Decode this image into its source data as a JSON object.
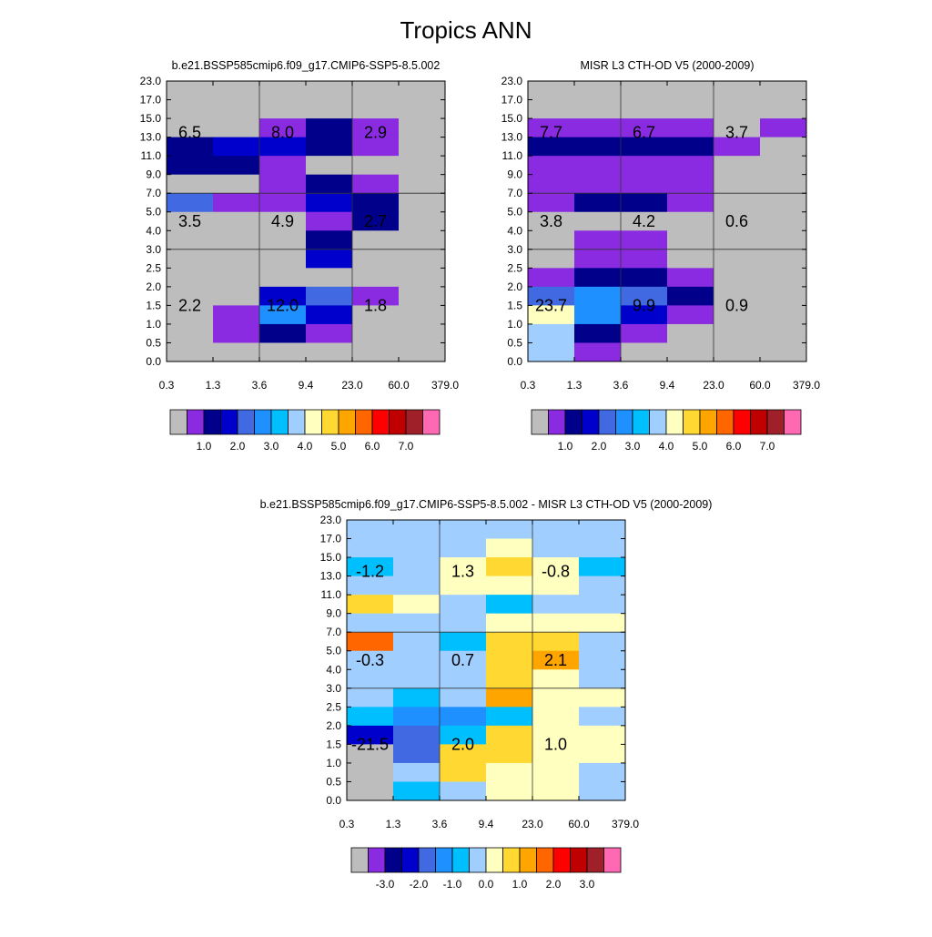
{
  "title": "Tropics ANN",
  "chart_data": [
    {
      "type": "heatmap",
      "title": "b.e21.BSSP585cmip6.f09_g17.CMIP6-SSP5-8.5.002",
      "xlabel": "",
      "ylabel": "",
      "x_ticks": [
        "0.3",
        "1.3",
        "3.6",
        "9.4",
        "23.0",
        "60.0",
        "379.0"
      ],
      "y_ticks": [
        "0.0",
        "0.5",
        "1.0",
        "1.5",
        "2.0",
        "2.5",
        "3.0",
        "4.0",
        "5.0",
        "7.0",
        "9.0",
        "11.0",
        "13.0",
        "15.0",
        "17.0",
        "23.0"
      ],
      "grid_x_at": [
        2,
        4
      ],
      "grid_y_at": [
        6,
        9
      ],
      "legend_labels": [
        "1.0",
        "2.0",
        "3.0",
        "4.0",
        "5.0",
        "6.0",
        "7.0"
      ],
      "cell_colors_top_to_bottom": [
        [
          "#bdbdbd",
          "#bdbdbd",
          "#bdbdbd",
          "#bdbdbd",
          "#bdbdbd",
          "#bdbdbd"
        ],
        [
          "#bdbdbd",
          "#bdbdbd",
          "#bdbdbd",
          "#bdbdbd",
          "#bdbdbd",
          "#bdbdbd"
        ],
        [
          "#bdbdbd",
          "#bdbdbd",
          "#8a2be2",
          "#00008b",
          "#8a2be2",
          "#bdbdbd"
        ],
        [
          "#00008b",
          "#0000cd",
          "#0000cd",
          "#00008b",
          "#8a2be2",
          "#bdbdbd"
        ],
        [
          "#00008b",
          "#00008b",
          "#8a2be2",
          "#bdbdbd",
          "#bdbdbd",
          "#bdbdbd"
        ],
        [
          "#bdbdbd",
          "#bdbdbd",
          "#8a2be2",
          "#00008b",
          "#8a2be2",
          "#bdbdbd"
        ],
        [
          "#4169e1",
          "#8a2be2",
          "#8a2be2",
          "#0000cd",
          "#00008b",
          "#bdbdbd"
        ],
        [
          "#bdbdbd",
          "#bdbdbd",
          "#bdbdbd",
          "#8a2be2",
          "#00008b",
          "#bdbdbd"
        ],
        [
          "#bdbdbd",
          "#bdbdbd",
          "#bdbdbd",
          "#00008b",
          "#bdbdbd",
          "#bdbdbd"
        ],
        [
          "#bdbdbd",
          "#bdbdbd",
          "#bdbdbd",
          "#0000cd",
          "#bdbdbd",
          "#bdbdbd"
        ],
        [
          "#bdbdbd",
          "#bdbdbd",
          "#bdbdbd",
          "#bdbdbd",
          "#bdbdbd",
          "#bdbdbd"
        ],
        [
          "#bdbdbd",
          "#bdbdbd",
          "#0000cd",
          "#4169e1",
          "#8a2be2",
          "#bdbdbd"
        ],
        [
          "#bdbdbd",
          "#8a2be2",
          "#1e90ff",
          "#0000cd",
          "#bdbdbd",
          "#bdbdbd"
        ],
        [
          "#bdbdbd",
          "#8a2be2",
          "#00008b",
          "#8a2be2",
          "#bdbdbd",
          "#bdbdbd"
        ],
        [
          "#bdbdbd",
          "#bdbdbd",
          "#bdbdbd",
          "#bdbdbd",
          "#bdbdbd",
          "#bdbdbd"
        ]
      ],
      "annotations": [
        {
          "text": "6.5",
          "col": 0.5,
          "row": 12.25
        },
        {
          "text": "8.0",
          "col": 2.5,
          "row": 12.25
        },
        {
          "text": "2.9",
          "col": 4.5,
          "row": 12.25
        },
        {
          "text": "3.5",
          "col": 0.5,
          "row": 7.5
        },
        {
          "text": "4.9",
          "col": 2.5,
          "row": 7.5
        },
        {
          "text": "2.7",
          "col": 4.5,
          "row": 7.5
        },
        {
          "text": "2.2",
          "col": 0.5,
          "row": 3.0
        },
        {
          "text": "12.0",
          "col": 2.5,
          "row": 3.0
        },
        {
          "text": "1.8",
          "col": 4.5,
          "row": 3.0
        }
      ]
    },
    {
      "type": "heatmap",
      "title": "MISR L3 CTH-OD V5 (2000-2009)",
      "xlabel": "",
      "ylabel": "",
      "x_ticks": [
        "0.3",
        "1.3",
        "3.6",
        "9.4",
        "23.0",
        "60.0",
        "379.0"
      ],
      "y_ticks": [
        "0.0",
        "0.5",
        "1.0",
        "1.5",
        "2.0",
        "2.5",
        "3.0",
        "4.0",
        "5.0",
        "7.0",
        "9.0",
        "11.0",
        "13.0",
        "15.0",
        "17.0",
        "23.0"
      ],
      "grid_x_at": [
        2,
        4
      ],
      "grid_y_at": [
        6,
        9
      ],
      "legend_labels": [
        "1.0",
        "2.0",
        "3.0",
        "4.0",
        "5.0",
        "6.0",
        "7.0"
      ],
      "cell_colors_top_to_bottom": [
        [
          "#bdbdbd",
          "#bdbdbd",
          "#bdbdbd",
          "#bdbdbd",
          "#bdbdbd",
          "#bdbdbd"
        ],
        [
          "#bdbdbd",
          "#bdbdbd",
          "#bdbdbd",
          "#bdbdbd",
          "#bdbdbd",
          "#bdbdbd"
        ],
        [
          "#8a2be2",
          "#8a2be2",
          "#8a2be2",
          "#8a2be2",
          "#bdbdbd",
          "#8a2be2"
        ],
        [
          "#00008b",
          "#00008b",
          "#00008b",
          "#00008b",
          "#8a2be2",
          "#bdbdbd"
        ],
        [
          "#8a2be2",
          "#8a2be2",
          "#8a2be2",
          "#8a2be2",
          "#bdbdbd",
          "#bdbdbd"
        ],
        [
          "#8a2be2",
          "#8a2be2",
          "#8a2be2",
          "#8a2be2",
          "#bdbdbd",
          "#bdbdbd"
        ],
        [
          "#8a2be2",
          "#00008b",
          "#00008b",
          "#8a2be2",
          "#bdbdbd",
          "#bdbdbd"
        ],
        [
          "#bdbdbd",
          "#bdbdbd",
          "#bdbdbd",
          "#bdbdbd",
          "#bdbdbd",
          "#bdbdbd"
        ],
        [
          "#bdbdbd",
          "#8a2be2",
          "#8a2be2",
          "#bdbdbd",
          "#bdbdbd",
          "#bdbdbd"
        ],
        [
          "#bdbdbd",
          "#8a2be2",
          "#8a2be2",
          "#bdbdbd",
          "#bdbdbd",
          "#bdbdbd"
        ],
        [
          "#8a2be2",
          "#00008b",
          "#00008b",
          "#8a2be2",
          "#bdbdbd",
          "#bdbdbd"
        ],
        [
          "#4169e1",
          "#1e90ff",
          "#4169e1",
          "#00008b",
          "#bdbdbd",
          "#bdbdbd"
        ],
        [
          "#ffffc0",
          "#1e90ff",
          "#0000cd",
          "#8a2be2",
          "#bdbdbd",
          "#bdbdbd"
        ],
        [
          "#a0cfff",
          "#00008b",
          "#8a2be2",
          "#bdbdbd",
          "#bdbdbd",
          "#bdbdbd"
        ],
        [
          "#a0cfff",
          "#8a2be2",
          "#bdbdbd",
          "#bdbdbd",
          "#bdbdbd",
          "#bdbdbd"
        ]
      ],
      "annotations": [
        {
          "text": "7.7",
          "col": 0.5,
          "row": 12.25
        },
        {
          "text": "6.7",
          "col": 2.5,
          "row": 12.25
        },
        {
          "text": "3.7",
          "col": 4.5,
          "row": 12.25
        },
        {
          "text": "3.8",
          "col": 0.5,
          "row": 7.5
        },
        {
          "text": "4.2",
          "col": 2.5,
          "row": 7.5
        },
        {
          "text": "0.6",
          "col": 4.5,
          "row": 7.5
        },
        {
          "text": "23.7",
          "col": 0.5,
          "row": 3.0
        },
        {
          "text": "9.9",
          "col": 2.5,
          "row": 3.0
        },
        {
          "text": "0.9",
          "col": 4.5,
          "row": 3.0
        }
      ]
    },
    {
      "type": "heatmap",
      "title": "b.e21.BSSP585cmip6.f09_g17.CMIP6-SSP5-8.5.002 - MISR L3 CTH-OD V5 (2000-2009)",
      "xlabel": "",
      "ylabel": "",
      "x_ticks": [
        "0.3",
        "1.3",
        "3.6",
        "9.4",
        "23.0",
        "60.0",
        "379.0"
      ],
      "y_ticks": [
        "0.0",
        "0.5",
        "1.0",
        "1.5",
        "2.0",
        "2.5",
        "3.0",
        "4.0",
        "5.0",
        "7.0",
        "9.0",
        "11.0",
        "13.0",
        "15.0",
        "17.0",
        "23.0"
      ],
      "grid_x_at": [
        2,
        4
      ],
      "grid_y_at": [
        6,
        9
      ],
      "legend_labels": [
        "-3.0",
        "-2.0",
        "-1.0",
        "0.0",
        "1.0",
        "2.0",
        "3.0"
      ],
      "cell_colors_top_to_bottom": [
        [
          "#a0cfff",
          "#a0cfff",
          "#a0cfff",
          "#a0cfff",
          "#a0cfff",
          "#a0cfff"
        ],
        [
          "#a0cfff",
          "#a0cfff",
          "#a0cfff",
          "#ffffc0",
          "#a0cfff",
          "#a0cfff"
        ],
        [
          "#00bfff",
          "#a0cfff",
          "#ffffc0",
          "#ffd932",
          "#ffffc0",
          "#00bfff"
        ],
        [
          "#a0cfff",
          "#a0cfff",
          "#ffffc0",
          "#ffffc0",
          "#ffffc0",
          "#a0cfff"
        ],
        [
          "#ffd932",
          "#ffffc0",
          "#a0cfff",
          "#00bfff",
          "#a0cfff",
          "#a0cfff"
        ],
        [
          "#a0cfff",
          "#a0cfff",
          "#a0cfff",
          "#ffffc0",
          "#ffffc0",
          "#ffffc0"
        ],
        [
          "#ff6600",
          "#a0cfff",
          "#00bfff",
          "#ffd932",
          "#ffd932",
          "#a0cfff"
        ],
        [
          "#a0cfff",
          "#a0cfff",
          "#a0cfff",
          "#ffd932",
          "#ffa500",
          "#a0cfff"
        ],
        [
          "#a0cfff",
          "#a0cfff",
          "#a0cfff",
          "#ffd932",
          "#ffffc0",
          "#a0cfff"
        ],
        [
          "#a0cfff",
          "#00bfff",
          "#a0cfff",
          "#ffa500",
          "#ffffc0",
          "#ffffc0"
        ],
        [
          "#00bfff",
          "#1e90ff",
          "#1e90ff",
          "#00bfff",
          "#ffffc0",
          "#a0cfff"
        ],
        [
          "#0000cd",
          "#4169e1",
          "#00bfff",
          "#ffd932",
          "#ffffc0",
          "#ffffc0"
        ],
        [
          "#bdbdbd",
          "#4169e1",
          "#ffd932",
          "#ffd932",
          "#ffffc0",
          "#ffffc0"
        ],
        [
          "#bdbdbd",
          "#a0cfff",
          "#ffd932",
          "#ffffc0",
          "#ffffc0",
          "#a0cfff"
        ],
        [
          "#bdbdbd",
          "#00bfff",
          "#a0cfff",
          "#ffffc0",
          "#ffffc0",
          "#a0cfff"
        ]
      ],
      "annotations": [
        {
          "text": "-1.2",
          "col": 0.5,
          "row": 12.25
        },
        {
          "text": "1.3",
          "col": 2.5,
          "row": 12.25
        },
        {
          "text": "-0.8",
          "col": 4.5,
          "row": 12.25
        },
        {
          "text": "-0.3",
          "col": 0.5,
          "row": 7.5
        },
        {
          "text": "0.7",
          "col": 2.5,
          "row": 7.5
        },
        {
          "text": "2.1",
          "col": 4.5,
          "row": 7.5
        },
        {
          "text": "-21.5",
          "col": 0.5,
          "row": 3.0
        },
        {
          "text": "2.0",
          "col": 2.5,
          "row": 3.0
        },
        {
          "text": "1.0",
          "col": 4.5,
          "row": 3.0
        }
      ]
    }
  ],
  "colorbar_colors": [
    "#bdbdbd",
    "#8a2be2",
    "#00008b",
    "#0000cd",
    "#4169e1",
    "#1e90ff",
    "#00bfff",
    "#a0cfff",
    "#ffffc0",
    "#ffd932",
    "#ffa500",
    "#ff6600",
    "#ff0000",
    "#c00000",
    "#a0202a",
    "#ff69b4"
  ]
}
